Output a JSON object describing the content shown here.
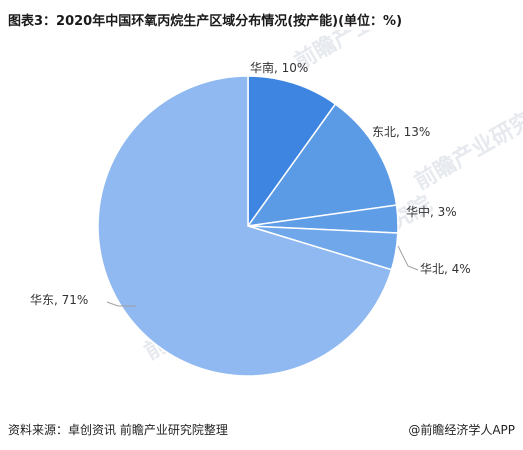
{
  "title": "图表3：2020年中国环氧丙烷生产区域分布情况(按产能)(单位：%)",
  "source": "资料来源：卓创资讯 前瞻产业研究院整理",
  "brand": "@前瞻经济学人APP",
  "watermark": "前瞻产业研究院",
  "chart_data": {
    "type": "pie",
    "title": "图表3：2020年中国环氧丙烷生产区域分布情况(按产能)(单位：%)",
    "unit": "%",
    "slices": [
      {
        "label": "华南",
        "value": 10,
        "display": "华南, 10%",
        "color": "#3d85e0"
      },
      {
        "label": "东北",
        "value": 13,
        "display": "东北, 13%",
        "color": "#5b9be6"
      },
      {
        "label": "华中",
        "value": 3,
        "display": "华中, 3%",
        "color": "#5f9de6"
      },
      {
        "label": "华北",
        "value": 4,
        "display": "华北, 4%",
        "color": "#6fa7ea"
      },
      {
        "label": "华东",
        "value": 71,
        "display": "华东, 71%",
        "color": "#8fb9f0"
      }
    ],
    "start_angle": "12 o'clock",
    "direction": "clockwise",
    "legend": "none"
  }
}
